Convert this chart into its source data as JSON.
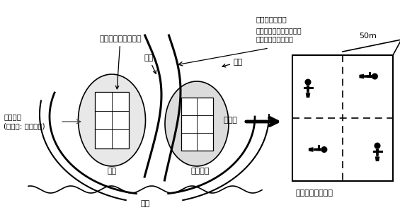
{
  "bg_color": "#ffffff",
  "label_survey_line": "調査測線及び調査枠",
  "label_waterway": "水路",
  "label_outer_sea": "外海",
  "label_survey_frame": "調査枠",
  "label_survey_baseline_title": "調査枠設置基点",
  "label_survey_baseline_body": "水路の切れ目より一番近\nい藻場を基点とする",
  "label_transect": "調査測線\n(ライン: しと表示)",
  "label_tidal_flat": "磯原",
  "label_seaweed_bed": "海藻藻場",
  "label_ocean": "海底",
  "label_enlarged": "・調査枠の拡大図",
  "label_50m": "50m"
}
